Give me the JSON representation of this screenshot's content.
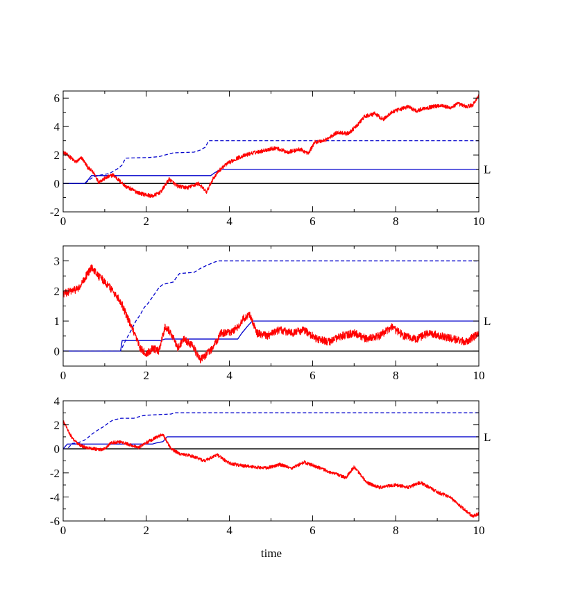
{
  "colors": {
    "path": "#ff0000",
    "bound": "#0000cc",
    "zero": "#000000",
    "frame": "#000000"
  },
  "xlabel": "time",
  "chart_data": [
    {
      "type": "line",
      "xlim": [
        0,
        10
      ],
      "ylim": [
        -2,
        6.5
      ],
      "xticks": [
        0,
        2,
        4,
        6,
        8,
        10
      ],
      "yticks": [
        -2,
        0,
        2,
        4,
        6
      ],
      "x_tick_labels": [
        "0",
        "2",
        "4",
        "6",
        "8",
        "10"
      ],
      "y_tick_labels": [
        "-2",
        "0",
        "2",
        "4",
        "6"
      ],
      "right_label": {
        "text": "L",
        "y": 1.0
      },
      "zero_line": 0,
      "series": [
        {
          "style": "dashed",
          "color": "#0000cc",
          "x": [
            0,
            0.52,
            0.72,
            0.92,
            1.12,
            1.2,
            1.32,
            1.42,
            1.5,
            2.05,
            2.3,
            2.65,
            3.15,
            3.3,
            3.42,
            3.5,
            10
          ],
          "y": [
            0,
            0,
            0.45,
            0.6,
            0.7,
            0.85,
            1.05,
            1.3,
            1.78,
            1.82,
            1.88,
            2.15,
            2.2,
            2.35,
            2.55,
            3.0,
            3.0
          ]
        },
        {
          "style": "solid",
          "color": "#0000cc",
          "x": [
            0,
            0.52,
            0.6,
            0.68,
            3.55,
            3.62,
            3.7,
            3.8,
            10
          ],
          "y": [
            0,
            0,
            0.25,
            0.55,
            0.55,
            0.7,
            0.85,
            1.0,
            1.0
          ]
        },
        {
          "style": "noisy",
          "color": "#ff0000",
          "x": [
            0,
            0.15,
            0.3,
            0.45,
            0.6,
            0.75,
            0.85,
            1.0,
            1.2,
            1.35,
            1.5,
            1.7,
            1.85,
            2.0,
            2.15,
            2.35,
            2.55,
            2.75,
            3.0,
            3.25,
            3.45,
            3.6,
            3.75,
            3.9,
            4.2,
            4.5,
            4.8,
            5.1,
            5.4,
            5.7,
            5.9,
            6.05,
            6.25,
            6.4,
            6.6,
            6.85,
            7.05,
            7.25,
            7.5,
            7.7,
            7.9,
            8.1,
            8.3,
            8.5,
            8.7,
            8.9,
            9.1,
            9.3,
            9.5,
            9.7,
            9.85,
            10
          ],
          "y": [
            2.2,
            1.9,
            1.5,
            1.8,
            1.1,
            0.7,
            0.1,
            0.35,
            0.6,
            0.2,
            -0.2,
            -0.5,
            -0.7,
            -0.8,
            -0.9,
            -0.6,
            0.3,
            -0.2,
            -0.3,
            0.0,
            -0.6,
            0.3,
            0.9,
            1.3,
            1.8,
            2.1,
            2.3,
            2.5,
            2.2,
            2.4,
            2.1,
            2.9,
            3.0,
            3.2,
            3.6,
            3.5,
            4.0,
            4.7,
            4.9,
            4.5,
            5.0,
            5.2,
            5.4,
            5.1,
            5.3,
            5.4,
            5.5,
            5.3,
            5.6,
            5.4,
            5.5,
            6.2
          ],
          "noise": 0.14
        }
      ]
    },
    {
      "type": "line",
      "xlim": [
        0,
        10
      ],
      "ylim": [
        -0.5,
        3.5
      ],
      "xticks": [
        0,
        2,
        4,
        6,
        8,
        10
      ],
      "yticks": [
        0,
        1,
        2,
        3
      ],
      "x_tick_labels": [
        "0",
        "2",
        "4",
        "6",
        "8",
        "10"
      ],
      "y_tick_labels": [
        "0",
        "1",
        "2",
        "3"
      ],
      "right_label": {
        "text": "L",
        "y": 1.0
      },
      "zero_line": 0,
      "series": [
        {
          "style": "dashed",
          "color": "#0000cc",
          "x": [
            0,
            1.38,
            1.5,
            1.62,
            1.75,
            1.85,
            1.95,
            2.05,
            2.15,
            2.3,
            2.4,
            2.5,
            2.65,
            2.75,
            2.8,
            3.15,
            3.3,
            3.45,
            3.62,
            3.72,
            10
          ],
          "y": [
            0,
            0,
            0.35,
            0.65,
            1.0,
            1.2,
            1.45,
            1.6,
            1.8,
            2.1,
            2.22,
            2.25,
            2.3,
            2.5,
            2.58,
            2.62,
            2.75,
            2.85,
            2.95,
            3.0,
            3.0
          ]
        },
        {
          "style": "solid",
          "color": "#0000cc",
          "x": [
            0,
            1.38,
            1.42,
            2.35,
            2.45,
            4.2,
            4.3,
            4.45,
            4.55,
            10
          ],
          "y": [
            0,
            0,
            0.35,
            0.35,
            0.4,
            0.4,
            0.6,
            0.85,
            1.0,
            1.0
          ]
        },
        {
          "style": "noisy",
          "color": "#ff0000",
          "x": [
            0,
            0.2,
            0.4,
            0.55,
            0.7,
            0.85,
            1.0,
            1.2,
            1.4,
            1.55,
            1.7,
            1.85,
            2.0,
            2.15,
            2.3,
            2.45,
            2.6,
            2.75,
            2.9,
            3.1,
            3.3,
            3.45,
            3.6,
            3.8,
            4.0,
            4.2,
            4.35,
            4.5,
            4.65,
            4.9,
            5.2,
            5.5,
            5.8,
            6.1,
            6.4,
            6.7,
            7.0,
            7.3,
            7.6,
            7.9,
            8.2,
            8.5,
            8.8,
            9.1,
            9.4,
            9.7,
            10
          ],
          "y": [
            1.9,
            2.0,
            2.1,
            2.5,
            2.8,
            2.5,
            2.3,
            2.0,
            1.6,
            1.1,
            0.6,
            0.1,
            -0.1,
            0.1,
            0.0,
            0.8,
            0.6,
            0.1,
            0.4,
            0.2,
            -0.3,
            -0.1,
            0.1,
            0.6,
            0.6,
            0.8,
            1.1,
            1.2,
            0.6,
            0.5,
            0.7,
            0.6,
            0.7,
            0.4,
            0.3,
            0.5,
            0.6,
            0.4,
            0.5,
            0.8,
            0.5,
            0.4,
            0.6,
            0.5,
            0.4,
            0.3,
            0.6
          ],
          "noise": 0.13
        }
      ]
    },
    {
      "type": "line",
      "xlim": [
        0,
        10
      ],
      "ylim": [
        -6,
        4
      ],
      "xticks": [
        0,
        2,
        4,
        6,
        8,
        10
      ],
      "yticks": [
        -6,
        -4,
        -2,
        0,
        2,
        4
      ],
      "x_tick_labels": [
        "0",
        "2",
        "4",
        "6",
        "8",
        "10"
      ],
      "y_tick_labels": [
        "-6",
        "-4",
        "-2",
        "0",
        "2",
        "4"
      ],
      "right_label": {
        "text": "L",
        "y": 1.0
      },
      "zero_line": 0,
      "series": [
        {
          "style": "dashed",
          "color": "#0000cc",
          "x": [
            0,
            0.1,
            0.22,
            0.35,
            0.5,
            0.6,
            0.72,
            0.85,
            1.0,
            1.1,
            1.2,
            1.4,
            1.7,
            1.9,
            2.0,
            2.3,
            2.6,
            2.68,
            10
          ],
          "y": [
            0,
            0,
            0.45,
            0.5,
            0.7,
            0.95,
            1.3,
            1.6,
            1.9,
            2.2,
            2.4,
            2.55,
            2.55,
            2.75,
            2.8,
            2.85,
            2.9,
            3.0,
            3.0
          ]
        },
        {
          "style": "solid",
          "color": "#0000cc",
          "x": [
            0,
            0.1,
            2.15,
            2.25,
            2.4,
            2.5,
            10
          ],
          "y": [
            0,
            0.4,
            0.4,
            0.5,
            0.6,
            1.0,
            1.0
          ]
        },
        {
          "style": "noisy",
          "color": "#ff0000",
          "x": [
            0,
            0.08,
            0.2,
            0.35,
            0.55,
            0.75,
            0.95,
            1.15,
            1.35,
            1.55,
            1.8,
            2.0,
            2.2,
            2.4,
            2.6,
            2.8,
            3.1,
            3.4,
            3.7,
            4.0,
            4.3,
            4.6,
            4.9,
            5.2,
            5.5,
            5.8,
            6.1,
            6.4,
            6.8,
            7.0,
            7.3,
            7.6,
            8.0,
            8.3,
            8.6,
            9.0,
            9.3,
            9.6,
            9.85,
            10
          ],
          "y": [
            2.3,
            1.8,
            1.0,
            0.4,
            0.1,
            0.0,
            -0.1,
            0.5,
            0.6,
            0.4,
            0.1,
            0.5,
            0.9,
            1.2,
            0.0,
            -0.4,
            -0.6,
            -1.0,
            -0.5,
            -1.2,
            -1.4,
            -1.5,
            -1.6,
            -1.3,
            -1.6,
            -1.1,
            -1.5,
            -1.9,
            -2.4,
            -1.5,
            -2.8,
            -3.2,
            -3.0,
            -3.2,
            -2.8,
            -3.6,
            -4.0,
            -4.9,
            -5.6,
            -5.4
          ],
          "noise": 0.14
        }
      ]
    }
  ]
}
